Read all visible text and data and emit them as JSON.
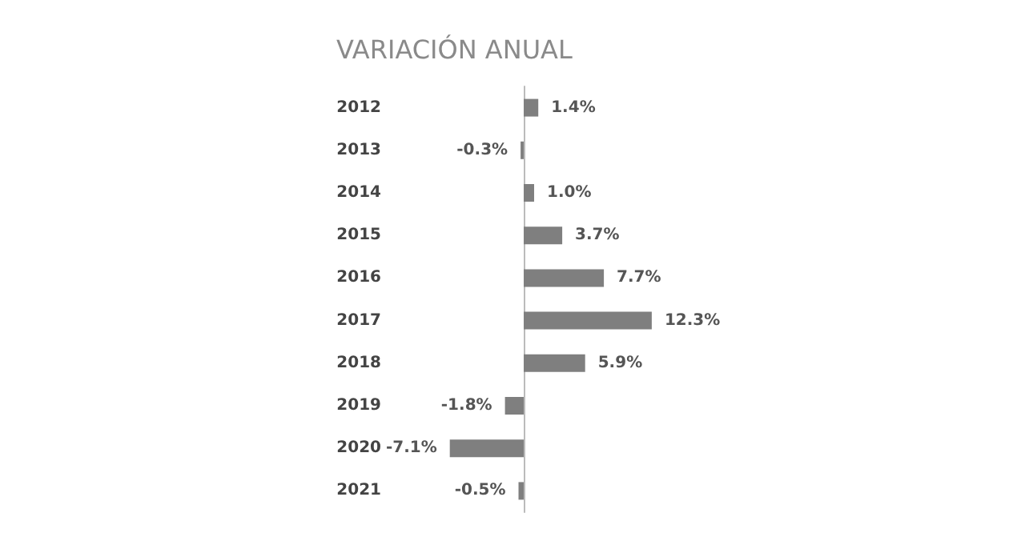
{
  "chart_data": {
    "type": "bar",
    "orientation": "horizontal",
    "title": "VARIACIÓN ANUAL",
    "categories": [
      "2012",
      "2013",
      "2014",
      "2015",
      "2016",
      "2017",
      "2018",
      "2019",
      "2020",
      "2021"
    ],
    "values": [
      1.4,
      -0.3,
      1.0,
      3.7,
      7.7,
      12.3,
      5.9,
      -1.8,
      -7.1,
      -0.5
    ],
    "value_labels": [
      "1.4%",
      "-0.3%",
      "1.0%",
      "3.7%",
      "7.7%",
      "12.3%",
      "5.9%",
      "-1.8%",
      "-7.1%",
      "-0.5%"
    ],
    "color": "#7f7f7f",
    "tick_labels": "y"
  }
}
